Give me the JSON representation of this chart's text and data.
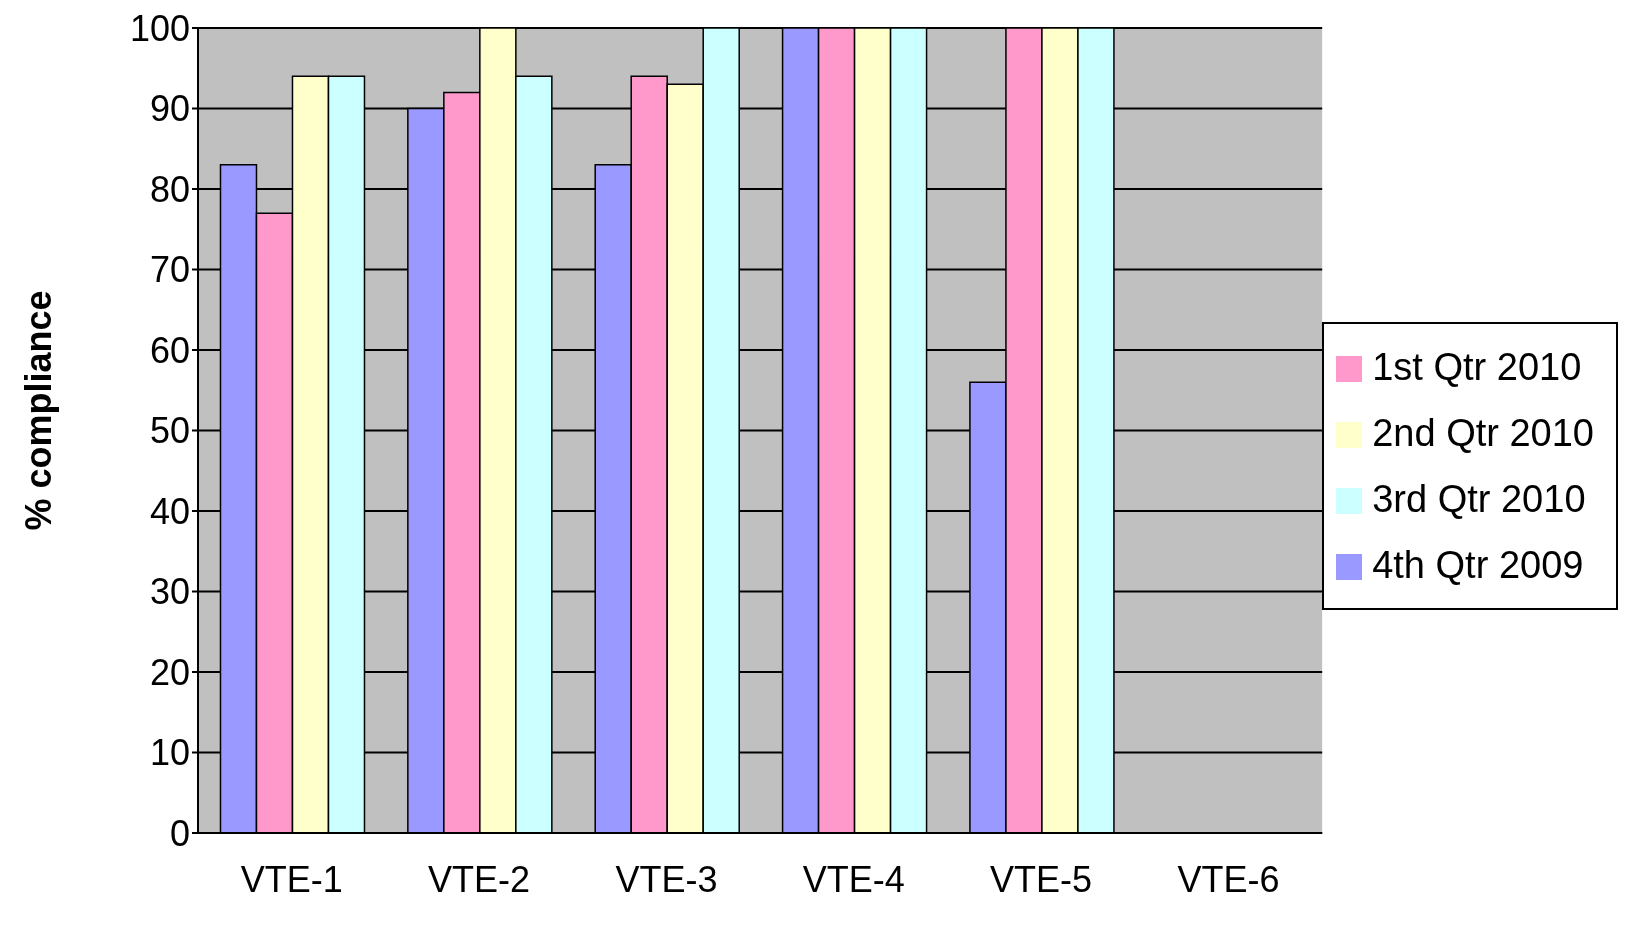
{
  "chart_data": {
    "type": "bar",
    "ylabel": "% compliance",
    "categories": [
      "VTE-1",
      "VTE-2",
      "VTE-3",
      "VTE-4",
      "VTE-5",
      "VTE-6"
    ],
    "series": [
      {
        "name": "4th Qtr 2009",
        "color": "#9999ff",
        "values": [
          83,
          90,
          83,
          100,
          56,
          null
        ]
      },
      {
        "name": "1st Qtr 2010",
        "color": "#ff99cc",
        "values": [
          77,
          92,
          94,
          100,
          100,
          null
        ]
      },
      {
        "name": "2nd Qtr 2010",
        "color": "#ffffcc",
        "values": [
          94,
          100,
          93,
          100,
          100,
          null
        ]
      },
      {
        "name": "3rd Qtr 2010",
        "color": "#ccffff",
        "values": [
          94,
          94,
          100,
          100,
          100,
          null
        ]
      }
    ],
    "ylim": [
      0,
      100
    ],
    "yticks": [
      0,
      10,
      20,
      30,
      40,
      50,
      60,
      70,
      80,
      90,
      100
    ],
    "grid": "y",
    "legend": "right"
  }
}
